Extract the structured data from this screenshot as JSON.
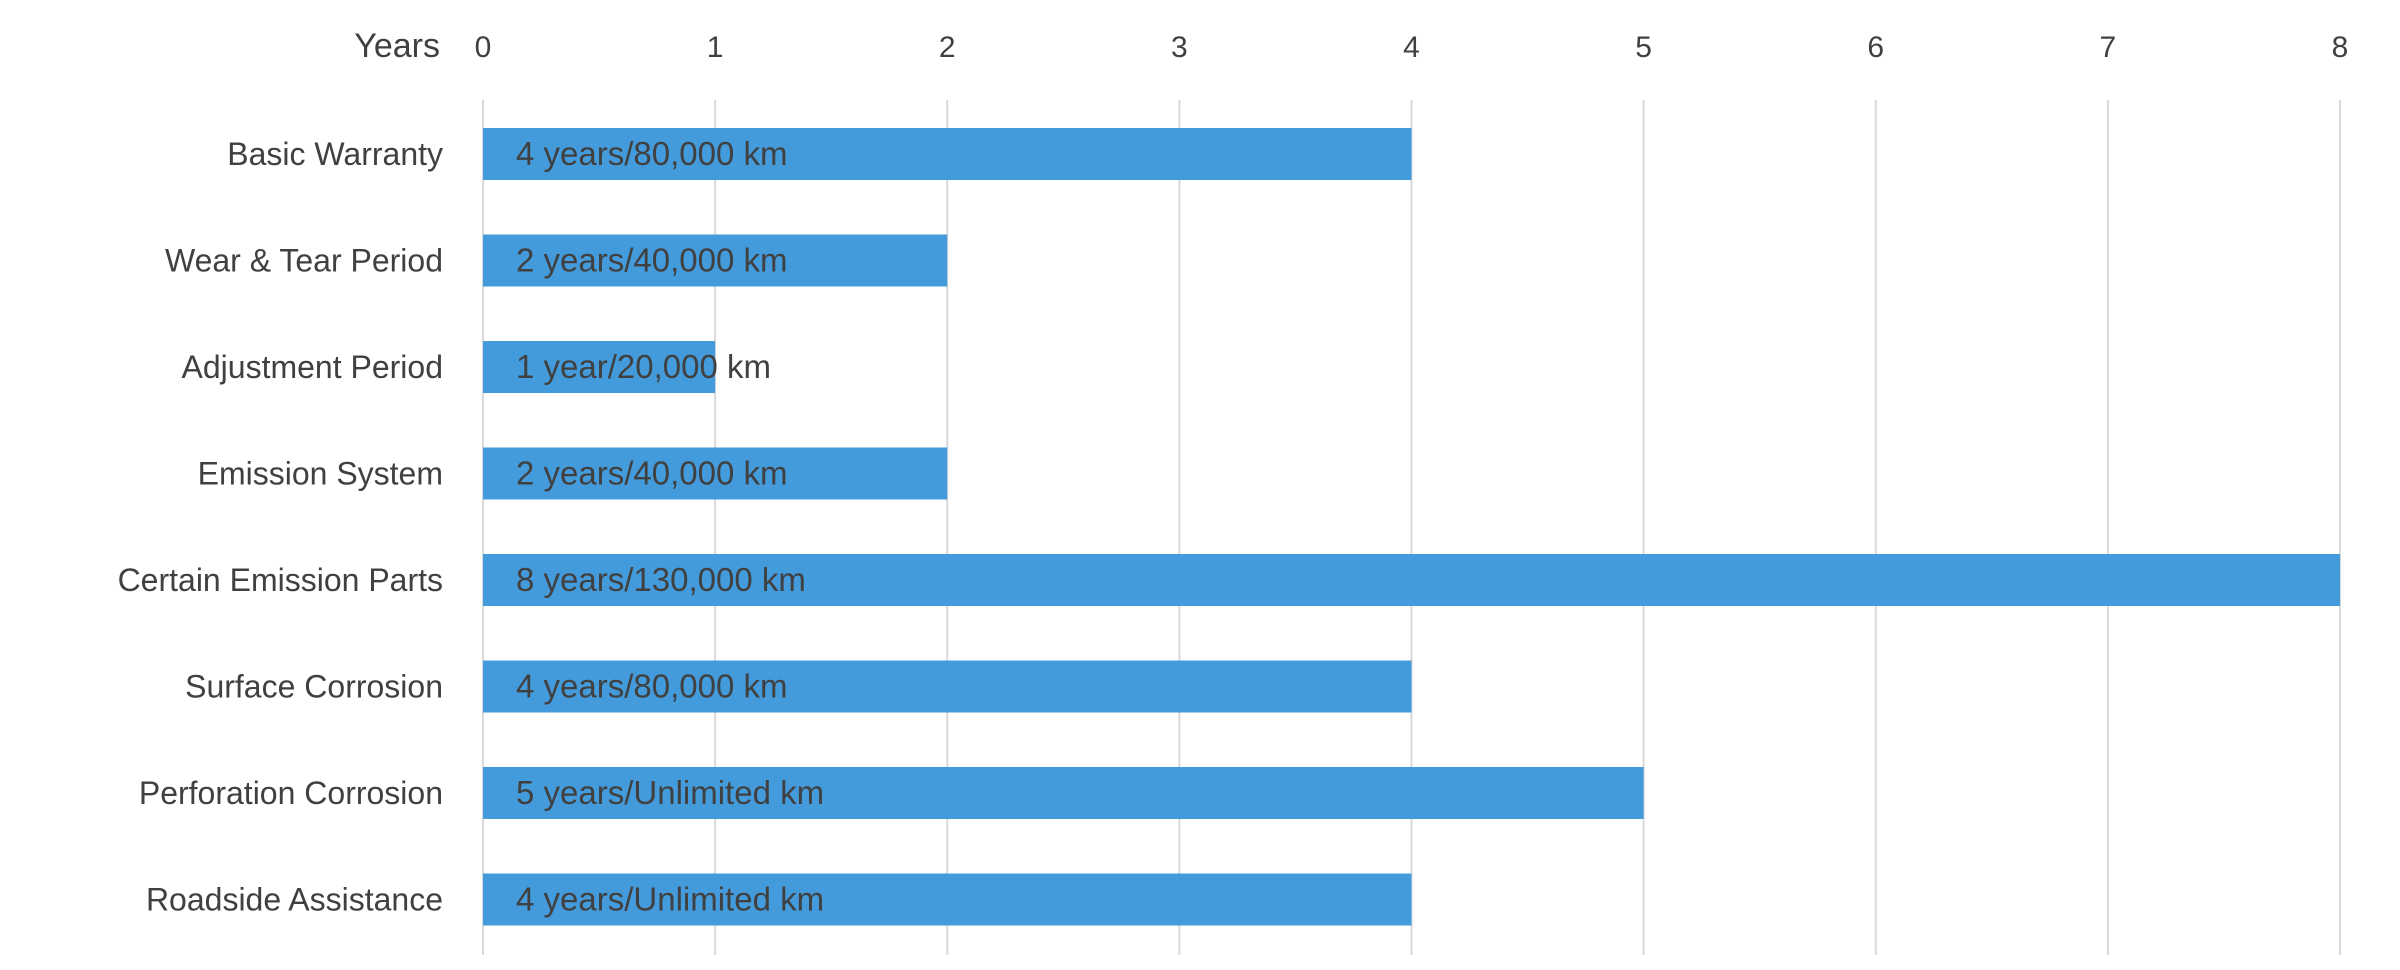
{
  "chart_data": {
    "type": "bar",
    "orientation": "horizontal",
    "xlabel": "Years",
    "ylabel": "",
    "xlim": [
      0,
      8
    ],
    "x_ticks": [
      0,
      1,
      2,
      3,
      4,
      5,
      6,
      7,
      8
    ],
    "x_axis_position": "top",
    "grid": true,
    "legend": "none",
    "bar_color": "#449bdb",
    "categories": [
      "Basic Warranty",
      "Wear & Tear Period",
      "Adjustment Period",
      "Emission System",
      "Certain Emission Parts",
      "Surface Corrosion",
      "Perforation Corrosion",
      "Roadside Assistance"
    ],
    "values": [
      4,
      2,
      1,
      2,
      8,
      4,
      5,
      4
    ],
    "data_labels": [
      "4 years/80,000 km",
      "2 years/40,000 km",
      "1 year/20,000 km",
      "2 years/40,000 km",
      "8 years/130,000 km",
      "4 years/80,000 km",
      "5 years/Unlimited km",
      "4 years/Unlimited km"
    ]
  }
}
